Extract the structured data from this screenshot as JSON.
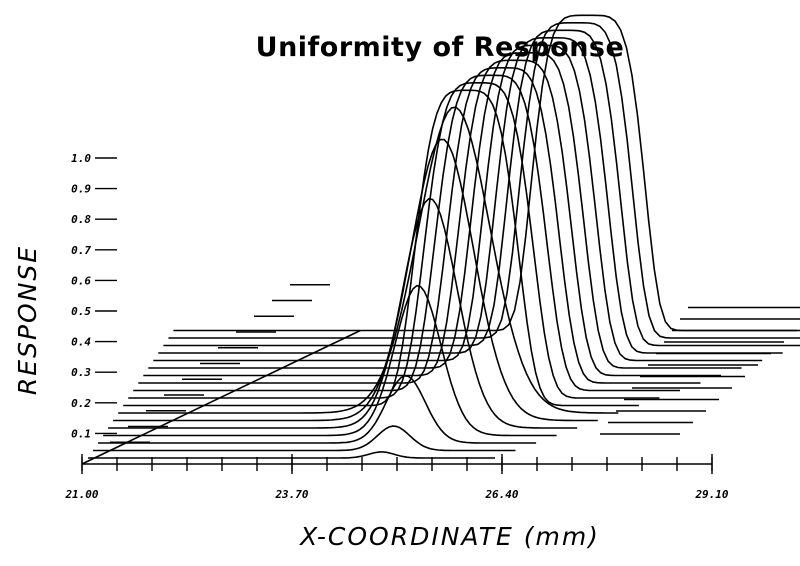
{
  "chart_data": {
    "type": "line",
    "title": "Uniformity of Response",
    "xlabel": "X-COORDINATE (mm)",
    "ylabel": "RESPONSE",
    "x_tick_labels": [
      "21.00",
      "23.70",
      "26.40",
      "29.10"
    ],
    "x_ticks": [
      21.0,
      23.7,
      26.4,
      29.1
    ],
    "xlim": [
      21.0,
      29.1
    ],
    "y_tick_labels": [
      "0.1",
      "0.2",
      "0.3",
      "0.4",
      "0.5",
      "0.6",
      "0.7",
      "0.8",
      "0.9",
      "1.0"
    ],
    "y_ticks": [
      0.1,
      0.2,
      0.3,
      0.4,
      0.5,
      0.6,
      0.7,
      0.8,
      0.9,
      1.0
    ],
    "ylim": [
      0,
      1.0
    ],
    "grid": false,
    "legend": "none",
    "peak_center_x": 24.85,
    "series": [
      {
        "values": [
          0.02,
          0.5,
          0.5
        ]
      },
      {
        "values": [
          0.08,
          0.5,
          0.5
        ]
      },
      {
        "values": [
          0.22,
          0.5,
          0.5
        ]
      },
      {
        "values": [
          0.49,
          0.5,
          0.5
        ]
      },
      {
        "values": [
          0.75,
          0.5,
          0.5
        ]
      },
      {
        "values": [
          0.92,
          0.5,
          0.5
        ]
      },
      {
        "values": [
          1.0,
          0.5,
          0.5
        ]
      },
      {
        "values": [
          1.03,
          0.5,
          0.5
        ]
      },
      {
        "values": [
          1.03,
          0.5,
          0.5
        ]
      },
      {
        "values": [
          1.03,
          0.5,
          0.5
        ]
      },
      {
        "values": [
          1.03,
          0.5,
          0.5
        ]
      },
      {
        "values": [
          1.03,
          0.5,
          0.5
        ]
      },
      {
        "values": [
          1.03,
          0.5,
          0.5
        ]
      },
      {
        "values": [
          1.03,
          0.5,
          0.5
        ]
      },
      {
        "values": [
          1.03,
          0.5,
          0.5
        ]
      },
      {
        "values": [
          1.03,
          0.5,
          0.5
        ]
      },
      {
        "values": [
          1.03,
          0.5,
          0.5
        ]
      },
      {
        "values": [
          1.03,
          0.5,
          0.5
        ]
      }
    ]
  }
}
